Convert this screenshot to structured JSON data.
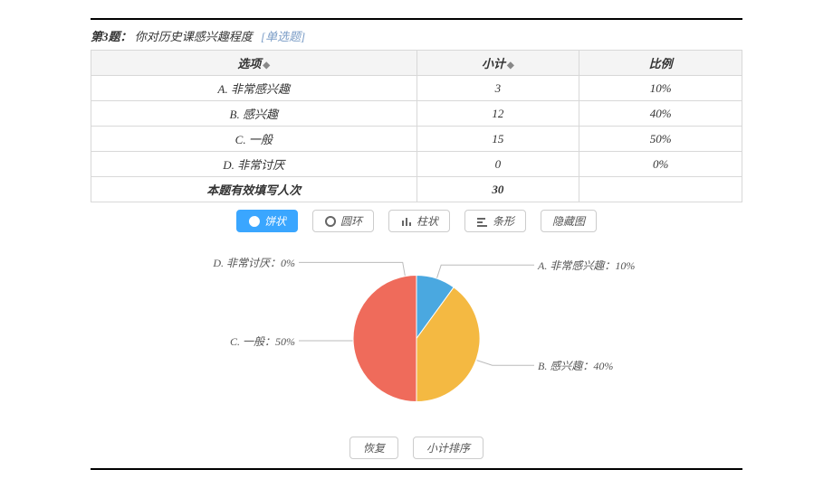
{
  "question": {
    "prefix": "第3题：",
    "text": "你对历史课感兴趣程度",
    "tag": "[单选题]"
  },
  "table": {
    "headers": {
      "option": "选项",
      "subtotal": "小计",
      "ratio": "比例"
    },
    "rows": [
      {
        "option": "A. 非常感兴趣",
        "subtotal": "3",
        "ratio": "10%"
      },
      {
        "option": "B. 感兴趣",
        "subtotal": "12",
        "ratio": "40%"
      },
      {
        "option": "C. 一般",
        "subtotal": "15",
        "ratio": "50%"
      },
      {
        "option": "D. 非常讨厌",
        "subtotal": "0",
        "ratio": "0%"
      }
    ],
    "footer": {
      "label": "本题有效填写人次",
      "subtotal": "30",
      "ratio": ""
    },
    "border_color": "#d8d8d8",
    "header_bg": "#f4f4f4"
  },
  "chart_buttons": {
    "pie": "饼状",
    "ring": "圆环",
    "bar": "柱状",
    "line": "条形",
    "hide": "隐藏图"
  },
  "pie": {
    "type": "pie",
    "radius": 70,
    "background_color": "#ffffff",
    "slices": [
      {
        "label": "A. 非常感兴趣：10%",
        "value": 10,
        "color": "#4aa8e0"
      },
      {
        "label": "B. 感兴趣：40%",
        "value": 40,
        "color": "#f4b942"
      },
      {
        "label": "C. 一般：50%",
        "value": 50,
        "color": "#ef6b5b"
      },
      {
        "label": "D. 非常讨厌：0%",
        "value": 0,
        "color": "#52b788"
      }
    ],
    "label_fontsize": 12,
    "label_color": "#555555",
    "leader_color": "#bbbbbb"
  },
  "bottom_buttons": {
    "reset": "恢复",
    "sort": "小计排序"
  }
}
